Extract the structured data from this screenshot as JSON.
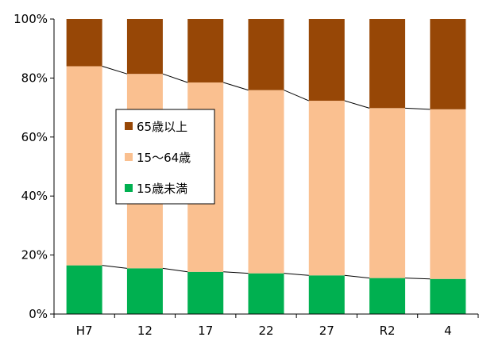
{
  "chart_data": {
    "type": "bar",
    "stacked": true,
    "normalized": true,
    "categories": [
      "H7",
      "12",
      "17",
      "22",
      "27",
      "R2",
      "4"
    ],
    "series": [
      {
        "name": "15歳未満",
        "color": "#00b050",
        "values": [
          16.5,
          15.5,
          14.3,
          13.8,
          13.1,
          12.2,
          11.9
        ]
      },
      {
        "name": "15〜64歳",
        "color": "#fac090",
        "values": [
          67.5,
          65.9,
          64.2,
          62.1,
          59.2,
          57.6,
          57.5
        ]
      },
      {
        "name": "65歳以上",
        "color": "#974706",
        "values": [
          16.0,
          18.6,
          21.5,
          24.1,
          27.7,
          30.2,
          30.6
        ]
      }
    ],
    "yticks": [
      "0%",
      "20%",
      "40%",
      "60%",
      "80%",
      "100%"
    ],
    "ylim": [
      0,
      100
    ],
    "grid": false,
    "connector_lines": true,
    "legend": {
      "placement": "left-middle",
      "entries": [
        "65歳以上",
        "15〜64歳",
        "15歳未満"
      ]
    }
  }
}
